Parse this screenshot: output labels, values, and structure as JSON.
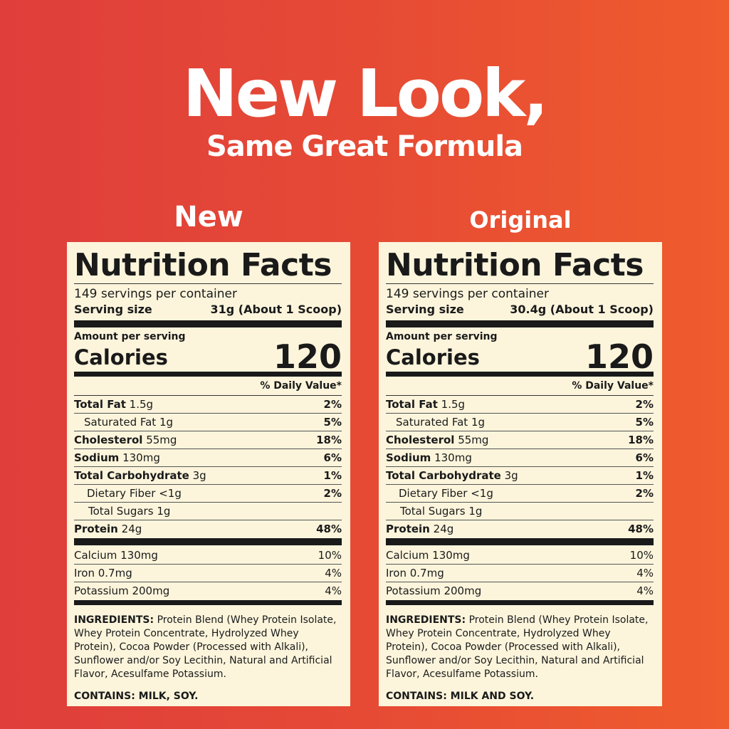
{
  "header": {
    "title": "New Look,",
    "subtitle": "Same Great Formula"
  },
  "colors": {
    "background_left": "#df3e3b",
    "background_right": "#ef5c2d",
    "label_bg": "#fcf5dc"
  },
  "labels": [
    {
      "heading": "New",
      "title": "Nutrition Facts",
      "servings": "149 servings per container",
      "serving_size_label": "Serving size",
      "serving_size_value": "31g (About 1 Scoop)",
      "amount_per_serving": "Amount per serving",
      "calories_label": "Calories",
      "calories_value": "120",
      "daily_value_header": "% Daily Value*",
      "nutrients": [
        {
          "name": "Total Fat",
          "amount": "1.5g",
          "dv": "2%",
          "bold": true,
          "indent": 0
        },
        {
          "name": "Saturated Fat",
          "amount": "1g",
          "dv": "5%",
          "bold": false,
          "indent": 1
        },
        {
          "name": "Cholesterol",
          "amount": "55mg",
          "dv": "18%",
          "bold": true,
          "indent": 0
        },
        {
          "name": "Sodium",
          "amount": "130mg",
          "dv": "6%",
          "bold": true,
          "indent": 0
        },
        {
          "name": "Total Carbohydrate",
          "amount": "3g",
          "dv": "1%",
          "bold": true,
          "indent": 0
        },
        {
          "name": "Dietary Fiber",
          "amount": "<1g",
          "dv": "2%",
          "bold": false,
          "indent": 2
        },
        {
          "name": "Total Sugars",
          "amount": "1g",
          "dv": "",
          "bold": false,
          "indent": 3
        },
        {
          "name": "Protein",
          "amount": "24g",
          "dv": "48%",
          "bold": true,
          "indent": 0
        }
      ],
      "minerals": [
        {
          "name": "Calcium",
          "amount": "130mg",
          "dv": "10%"
        },
        {
          "name": "Iron",
          "amount": "0.7mg",
          "dv": "4%"
        },
        {
          "name": "Potassium",
          "amount": "200mg",
          "dv": "4%"
        }
      ],
      "ingredients_label": "INGREDIENTS:",
      "ingredients": "Protein Blend (Whey Protein Isolate, Whey Protein Concentrate, Hydrolyzed Whey Protein), Cocoa Powder (Processed with Alkali), Sunflower and/or Soy Lecithin, Natural and Artificial Flavor, Acesulfame Potassium.",
      "contains": "CONTAINS: MILK, SOY."
    },
    {
      "heading": "Original",
      "title": "Nutrition Facts",
      "servings": "149 servings per container",
      "serving_size_label": "Serving size",
      "serving_size_value": "30.4g (About 1 Scoop)",
      "amount_per_serving": "Amount per serving",
      "calories_label": "Calories",
      "calories_value": "120",
      "daily_value_header": "% Daily Value*",
      "nutrients": [
        {
          "name": "Total Fat",
          "amount": "1.5g",
          "dv": "2%",
          "bold": true,
          "indent": 0
        },
        {
          "name": "Saturated Fat",
          "amount": "1g",
          "dv": "5%",
          "bold": false,
          "indent": 1
        },
        {
          "name": "Cholesterol",
          "amount": "55mg",
          "dv": "18%",
          "bold": true,
          "indent": 0
        },
        {
          "name": "Sodium",
          "amount": "130mg",
          "dv": "6%",
          "bold": true,
          "indent": 0
        },
        {
          "name": "Total Carbohydrate",
          "amount": "3g",
          "dv": "1%",
          "bold": true,
          "indent": 0
        },
        {
          "name": "Dietary Fiber",
          "amount": "<1g",
          "dv": "2%",
          "bold": false,
          "indent": 2
        },
        {
          "name": "Total Sugars",
          "amount": "1g",
          "dv": "",
          "bold": false,
          "indent": 3
        },
        {
          "name": "Protein",
          "amount": "24g",
          "dv": "48%",
          "bold": true,
          "indent": 0
        }
      ],
      "minerals": [
        {
          "name": "Calcium",
          "amount": "130mg",
          "dv": "10%"
        },
        {
          "name": "Iron",
          "amount": "0.7mg",
          "dv": "4%"
        },
        {
          "name": "Potassium",
          "amount": "200mg",
          "dv": "4%"
        }
      ],
      "ingredients_label": "INGREDIENTS:",
      "ingredients": "Protein Blend (Whey Protein Isolate, Whey Protein Concentrate, Hydrolyzed Whey Protein), Cocoa Powder (Processed with Alkali), Sunflower and/or Soy Lecithin, Natural and Artificial Flavor, Acesulfame Potassium.",
      "contains": "CONTAINS: MILK AND SOY."
    }
  ]
}
